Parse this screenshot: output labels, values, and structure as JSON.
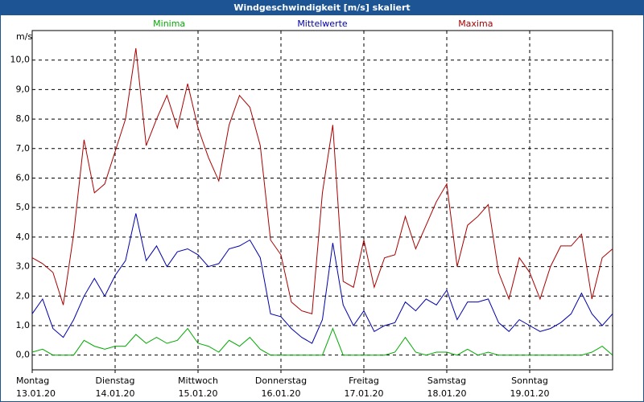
{
  "chart_data": {
    "type": "line",
    "title": "Windgeschwindigkeit [m/s] skaliert",
    "y_label": "m/s",
    "legend": "top",
    "grid": true,
    "x": [
      0,
      3,
      6,
      9,
      12,
      15,
      18,
      21,
      24,
      27,
      30,
      33,
      36,
      39,
      42,
      45,
      48,
      51,
      54,
      57,
      60,
      63,
      66,
      69,
      72,
      75,
      78,
      81,
      84,
      87,
      90,
      93,
      96,
      99,
      102,
      105,
      108,
      111,
      114,
      117,
      120,
      123,
      126,
      129,
      132,
      135,
      138,
      141,
      144,
      147,
      150,
      153,
      156,
      159,
      162,
      165,
      168
    ],
    "xlim": [
      0,
      168
    ],
    "xticks": [
      {
        "value": 0,
        "label": [
          "Montag",
          "13.01.20"
        ]
      },
      {
        "value": 24,
        "label": [
          "Dienstag",
          "14.01.20"
        ]
      },
      {
        "value": 48,
        "label": [
          "Mittwoch",
          "15.01.20"
        ]
      },
      {
        "value": 72,
        "label": [
          "Donnerstag",
          "16.01.20"
        ]
      },
      {
        "value": 96,
        "label": [
          "Freitag",
          "17.01.20"
        ]
      },
      {
        "value": 120,
        "label": [
          "Samstag",
          "18.01.20"
        ]
      },
      {
        "value": 144,
        "label": [
          "Sonntag",
          "19.01.20"
        ]
      }
    ],
    "ylim": [
      -0.5,
      11
    ],
    "yticks": [
      {
        "value": 0,
        "label": "0,0"
      },
      {
        "value": 1,
        "label": "1,0"
      },
      {
        "value": 2,
        "label": "2,0"
      },
      {
        "value": 3,
        "label": "3,0"
      },
      {
        "value": 4,
        "label": "4,0"
      },
      {
        "value": 5,
        "label": "5,0"
      },
      {
        "value": 6,
        "label": "6,0"
      },
      {
        "value": 7,
        "label": "7,0"
      },
      {
        "value": 8,
        "label": "8,0"
      },
      {
        "value": 9,
        "label": "9,0"
      },
      {
        "value": 10,
        "label": "10,0"
      }
    ],
    "series": [
      {
        "name": "Minima",
        "color": "#00aa00",
        "values": [
          0.1,
          0.2,
          0.0,
          0.0,
          0.0,
          0.5,
          0.3,
          0.2,
          0.3,
          0.3,
          0.7,
          0.4,
          0.6,
          0.4,
          0.5,
          0.9,
          0.4,
          0.3,
          0.1,
          0.5,
          0.3,
          0.6,
          0.2,
          0.0,
          0.0,
          0.0,
          0.0,
          0.0,
          0.0,
          0.9,
          0.0,
          0.0,
          0.0,
          0.0,
          0.0,
          0.1,
          0.6,
          0.1,
          0.0,
          0.1,
          0.1,
          0.0,
          0.2,
          0.0,
          0.1,
          0.0,
          0.0,
          0.0,
          0.0,
          0.0,
          0.0,
          0.0,
          0.0,
          0.0,
          0.1,
          0.3,
          0.0
        ]
      },
      {
        "name": "Mittelwerte",
        "color": "#0000aa",
        "values": [
          1.4,
          1.9,
          0.9,
          0.6,
          1.2,
          2.0,
          2.6,
          2.0,
          2.7,
          3.2,
          4.8,
          3.2,
          3.7,
          3.0,
          3.5,
          3.6,
          3.4,
          3.0,
          3.1,
          3.6,
          3.7,
          3.9,
          3.3,
          1.4,
          1.3,
          0.9,
          0.6,
          0.4,
          1.2,
          3.8,
          1.7,
          1.0,
          1.5,
          0.8,
          1.0,
          1.1,
          1.8,
          1.5,
          1.9,
          1.7,
          2.2,
          1.2,
          1.8,
          1.8,
          1.9,
          1.1,
          0.8,
          1.2,
          1.0,
          0.8,
          0.9,
          1.1,
          1.4,
          2.1,
          1.4,
          1.0,
          1.4
        ]
      },
      {
        "name": "Maxima",
        "color": "#aa0000",
        "values": [
          3.3,
          3.1,
          2.8,
          1.7,
          4.1,
          7.3,
          5.5,
          5.8,
          6.9,
          8.0,
          10.4,
          7.1,
          8.0,
          8.8,
          7.7,
          9.2,
          7.7,
          6.7,
          5.9,
          7.8,
          8.8,
          8.4,
          7.1,
          3.9,
          3.4,
          1.8,
          1.5,
          1.4,
          5.5,
          7.8,
          2.5,
          2.3,
          3.9,
          2.3,
          3.3,
          3.4,
          4.7,
          3.6,
          4.4,
          5.2,
          5.8,
          3.0,
          4.4,
          4.7,
          5.1,
          2.8,
          1.9,
          3.3,
          2.8,
          1.9,
          3.0,
          3.7,
          3.7,
          4.1,
          1.9,
          3.3,
          3.6
        ]
      }
    ]
  }
}
